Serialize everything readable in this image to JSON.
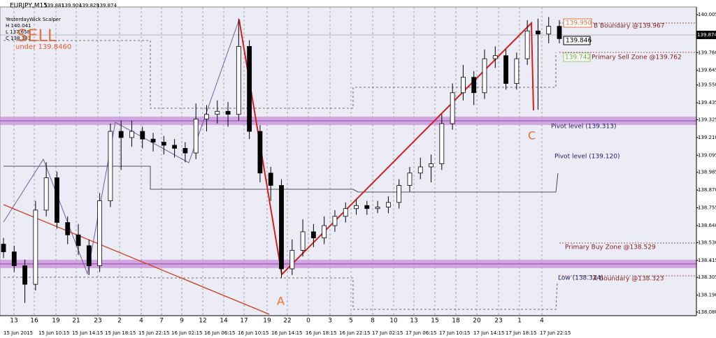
{
  "chart_data": {
    "type": "candlestick",
    "title": "EURJPY,M15",
    "header_ohlc": [
      139.881,
      139.904,
      139.829,
      139.874
    ],
    "indicator_lines": [
      "YesterdayWick Scalper",
      "H 140.041",
      "L 137.658",
      "C 138.381"
    ],
    "signal": "SELL",
    "signal_note": "under 139.8460",
    "price_tags": [
      "139.950",
      "139.846",
      "139.742"
    ],
    "annotations": [
      "B Boundary @139.967",
      "Primary Sell Zone @139.762",
      "Pivot level (139.313)",
      "Pivot level (139.120)",
      "Primary Buy Zone @138.529",
      "Low (138.324)",
      "A Boundary @138.323"
    ],
    "wave_labels": [
      "A",
      "C"
    ],
    "zones": [
      139.318,
      138.392
    ],
    "ylim": [
      138.057,
      140.055
    ],
    "yticks": [
      {
        "value": 140.005,
        "label": "140.005"
      },
      {
        "value": 139.76,
        "label": "139.760"
      },
      {
        "value": 139.645,
        "label": "139.645"
      },
      {
        "value": 139.55,
        "label": "139.550"
      },
      {
        "value": 139.435,
        "label": "139.435"
      },
      {
        "value": 139.325,
        "label": "139.325"
      },
      {
        "value": 139.21,
        "label": "139.210"
      },
      {
        "value": 139.095,
        "label": "139.095"
      },
      {
        "value": 138.985,
        "label": "138.985"
      },
      {
        "value": 138.87,
        "label": "138.870"
      },
      {
        "value": 138.755,
        "label": "138.755"
      },
      {
        "value": 138.64,
        "label": "138.640"
      },
      {
        "value": 138.53,
        "label": "138.530"
      },
      {
        "value": 138.415,
        "label": "138.415"
      },
      {
        "value": 138.305,
        "label": "138.305"
      },
      {
        "value": 138.19,
        "label": "138.190"
      },
      {
        "value": 138.08,
        "label": "138.080"
      }
    ],
    "x_labels": [
      "13",
      "16",
      "19",
      "21",
      "23",
      "2",
      "4",
      "7",
      "9",
      "12",
      "14",
      "17",
      "19",
      "22",
      "0",
      "3",
      "5",
      "8",
      "10",
      "13",
      "15",
      "18",
      "20",
      "23",
      "1",
      "4"
    ],
    "date_labels": [
      "15 Jun 2015",
      "15 Jun 10:15",
      "15 Jun 14:15",
      "15 Jun 18:15",
      "15 Jun 22:15",
      "16 Jun 02:15",
      "16 Jun 06:15",
      "16 Jun 10:15",
      "16 Jun 14:15",
      "16 Jun 18:15",
      "16 Jun 22:15",
      "17 Jun 02:15",
      "17 Jun 06:15",
      "17 Jun 10:15",
      "17 Jun 14:15",
      "17 Jun 18:15",
      "17 Jun 22:15"
    ],
    "ohlc": [
      [
        138.52,
        138.56,
        138.43,
        138.47
      ],
      [
        138.47,
        138.51,
        138.34,
        138.38
      ],
      [
        138.38,
        138.42,
        138.14,
        138.26
      ],
      [
        138.26,
        138.8,
        138.22,
        138.74
      ],
      [
        138.74,
        139.05,
        138.7,
        138.95
      ],
      [
        138.95,
        138.99,
        138.62,
        138.66
      ],
      [
        138.66,
        138.7,
        138.52,
        138.58
      ],
      [
        138.58,
        138.65,
        138.45,
        138.51
      ],
      [
        138.51,
        138.55,
        138.32,
        138.38
      ],
      [
        138.38,
        138.85,
        138.34,
        138.8
      ],
      [
        138.8,
        139.3,
        138.76,
        139.25
      ],
      [
        139.25,
        139.32,
        139.0,
        139.21
      ],
      [
        139.21,
        139.32,
        139.15,
        139.25
      ],
      [
        139.25,
        139.28,
        139.14,
        139.2
      ],
      [
        139.2,
        139.24,
        139.12,
        139.18
      ],
      [
        139.18,
        139.22,
        139.1,
        139.16
      ],
      [
        139.16,
        139.2,
        139.08,
        139.14
      ],
      [
        139.14,
        139.18,
        139.05,
        139.11
      ],
      [
        139.11,
        139.43,
        139.07,
        139.33
      ],
      [
        139.33,
        139.42,
        139.25,
        139.36
      ],
      [
        139.36,
        139.45,
        139.3,
        139.38
      ],
      [
        139.38,
        139.44,
        139.28,
        139.36
      ],
      [
        139.36,
        139.98,
        139.32,
        139.8
      ],
      [
        139.8,
        139.84,
        139.2,
        139.25
      ],
      [
        139.25,
        139.29,
        138.92,
        138.98
      ],
      [
        138.98,
        139.02,
        138.8,
        138.9
      ],
      [
        138.9,
        138.94,
        138.3,
        138.36
      ],
      [
        138.36,
        138.55,
        138.32,
        138.48
      ],
      [
        138.48,
        138.68,
        138.44,
        138.6
      ],
      [
        138.6,
        138.65,
        138.5,
        138.56
      ],
      [
        138.56,
        138.7,
        138.52,
        138.64
      ],
      [
        138.64,
        138.74,
        138.6,
        138.7
      ],
      [
        138.7,
        138.79,
        138.66,
        138.75
      ],
      [
        138.75,
        138.81,
        138.71,
        138.77
      ],
      [
        138.77,
        138.8,
        138.71,
        138.75
      ],
      [
        138.75,
        138.8,
        138.72,
        138.76
      ],
      [
        138.76,
        138.83,
        138.72,
        138.79
      ],
      [
        138.79,
        138.94,
        138.75,
        138.9
      ],
      [
        138.9,
        139.02,
        138.86,
        138.98
      ],
      [
        138.98,
        139.08,
        138.94,
        139.02
      ],
      [
        139.02,
        139.1,
        138.92,
        139.04
      ],
      [
        139.04,
        139.36,
        139.0,
        139.3
      ],
      [
        139.3,
        139.56,
        139.26,
        139.5
      ],
      [
        139.5,
        139.68,
        139.45,
        139.6
      ],
      [
        139.6,
        139.64,
        139.42,
        139.5
      ],
      [
        139.5,
        139.78,
        139.46,
        139.72
      ],
      [
        139.72,
        139.8,
        139.66,
        139.74
      ],
      [
        139.74,
        139.78,
        139.52,
        139.56
      ],
      [
        139.56,
        139.76,
        139.52,
        139.72
      ],
      [
        139.72,
        139.97,
        139.68,
        139.9
      ],
      [
        139.9,
        139.98,
        139.39,
        139.88
      ],
      [
        139.88,
        139.99,
        139.82,
        139.93
      ],
      [
        139.93,
        139.97,
        139.82,
        139.85
      ]
    ]
  }
}
